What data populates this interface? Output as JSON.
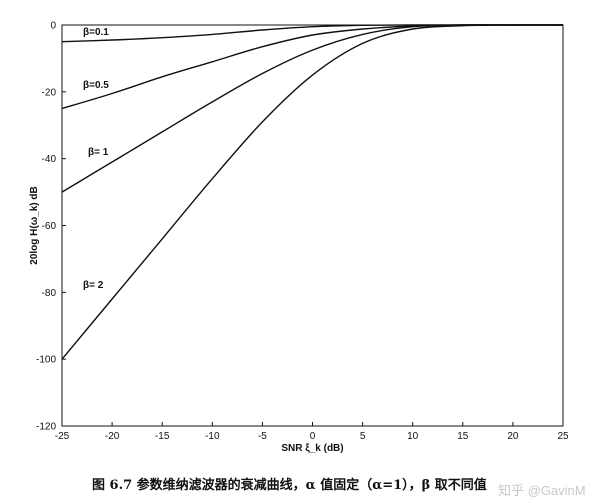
{
  "chart_data": {
    "type": "line",
    "title": "",
    "xlabel": "SNR ξ_k (dB)",
    "ylabel": "20log H(ω_k) dB",
    "xlim": [
      -25,
      25
    ],
    "ylim": [
      -120,
      0
    ],
    "xticks": [
      -25,
      -20,
      -15,
      -10,
      -5,
      0,
      5,
      10,
      15,
      20,
      25
    ],
    "yticks": [
      0,
      -20,
      -40,
      -60,
      -80,
      -100,
      -120
    ],
    "grid": false,
    "series": [
      {
        "name": "β=0.1",
        "x": [
          -25,
          -20,
          -15,
          -10,
          -5,
          0,
          5,
          10,
          15,
          20,
          25
        ],
        "y": [
          -5,
          -4.5,
          -3.8,
          -2.8,
          -1.5,
          -0.5,
          -0.1,
          0,
          0,
          0,
          0
        ]
      },
      {
        "name": "β=0.5",
        "x": [
          -25,
          -20,
          -15,
          -10,
          -5,
          0,
          5,
          10,
          15,
          20,
          25
        ],
        "y": [
          -25,
          -20.5,
          -15.5,
          -11,
          -6.5,
          -3,
          -1.2,
          -0.3,
          0,
          0,
          0
        ]
      },
      {
        "name": "β= 1",
        "x": [
          -25,
          -20,
          -15,
          -10,
          -5,
          0,
          5,
          10,
          15,
          20,
          25
        ],
        "y": [
          -50,
          -41,
          -32,
          -23,
          -14.5,
          -7.5,
          -2.8,
          -0.5,
          0,
          0,
          0
        ]
      },
      {
        "name": "β= 2",
        "x": [
          -25,
          -20,
          -15,
          -10,
          -5,
          0,
          5,
          10,
          15,
          20,
          25
        ],
        "y": [
          -100,
          -82,
          -64,
          -46,
          -29,
          -15,
          -5.5,
          -1.2,
          -0.2,
          0,
          0
        ]
      }
    ]
  },
  "caption": "图 6.7  参数维纳滤波器的衰减曲线，α 值固定（α=1），β 取不同值",
  "watermark": "知乎 @GavinM",
  "colors": {
    "line": "#111111",
    "axis": "#111111",
    "watermark": "#c8c8c8"
  }
}
